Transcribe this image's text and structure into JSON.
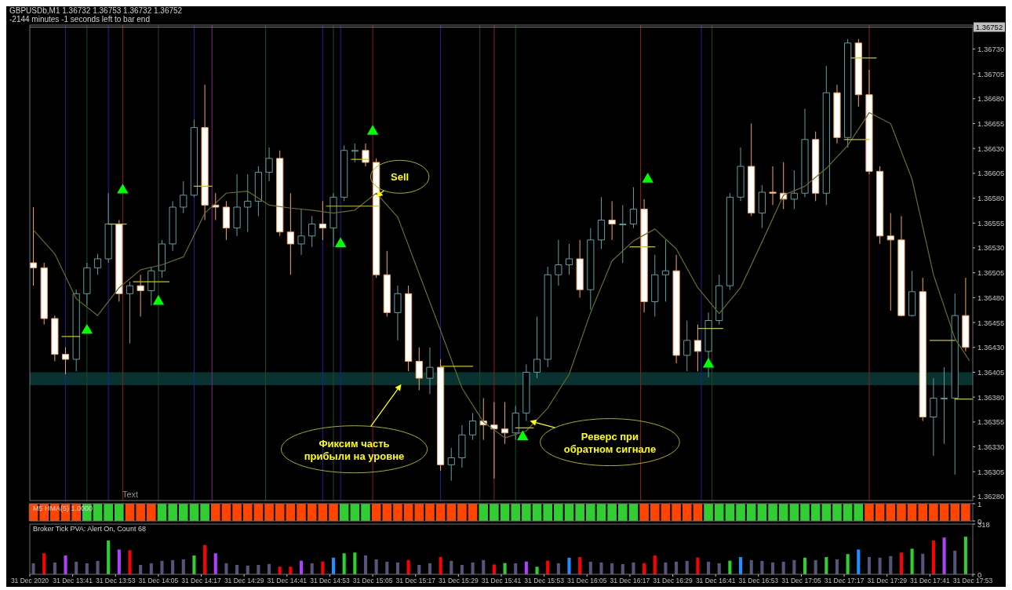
{
  "chart_data": [
    {
      "type": "candlestick",
      "title": "GBPUSDb,M1  1.36732 1.36753 1.36732 1.36752",
      "subtitle": "-2144 minutes -1 seconds left to bar end",
      "x": [
        "2020-12-31T13:30",
        "2020-12-31T13:33",
        "2020-12-31T13:36",
        "2020-12-31T13:39",
        "2020-12-31T13:42",
        "2020-12-31T13:45",
        "2020-12-31T13:48",
        "2020-12-31T13:51",
        "2020-12-31T13:54",
        "2020-12-31T13:57",
        "2020-12-31T14:00",
        "2020-12-31T14:03",
        "2020-12-31T14:06",
        "2020-12-31T14:09",
        "2020-12-31T14:12",
        "2020-12-31T14:15",
        "2020-12-31T14:18",
        "2020-12-31T14:21",
        "2020-12-31T14:24",
        "2020-12-31T14:27",
        "2020-12-31T14:30",
        "2020-12-31T14:33",
        "2020-12-31T14:36",
        "2020-12-31T14:39",
        "2020-12-31T14:42",
        "2020-12-31T14:45",
        "2020-12-31T14:48",
        "2020-12-31T14:51",
        "2020-12-31T14:54",
        "2020-12-31T14:57",
        "2020-12-31T15:00",
        "2020-12-31T15:03",
        "2020-12-31T15:06",
        "2020-12-31T15:09",
        "2020-12-31T15:12",
        "2020-12-31T15:15",
        "2020-12-31T15:18",
        "2020-12-31T15:21",
        "2020-12-31T15:24",
        "2020-12-31T15:27",
        "2020-12-31T15:30",
        "2020-12-31T15:33",
        "2020-12-31T15:36",
        "2020-12-31T15:39",
        "2020-12-31T15:42",
        "2020-12-31T15:45",
        "2020-12-31T15:48",
        "2020-12-31T15:51",
        "2020-12-31T15:54",
        "2020-12-31T15:57",
        "2020-12-31T16:00",
        "2020-12-31T16:03",
        "2020-12-31T16:06",
        "2020-12-31T16:09",
        "2020-12-31T16:12",
        "2020-12-31T16:15",
        "2020-12-31T16:18",
        "2020-12-31T16:21",
        "2020-12-31T16:24",
        "2020-12-31T16:27",
        "2020-12-31T16:30",
        "2020-12-31T16:33",
        "2020-12-31T16:36",
        "2020-12-31T16:39",
        "2020-12-31T16:42",
        "2020-12-31T16:45",
        "2020-12-31T16:48",
        "2020-12-31T16:51",
        "2020-12-31T16:54",
        "2020-12-31T16:57",
        "2020-12-31T17:00",
        "2020-12-31T17:03",
        "2020-12-31T17:06",
        "2020-12-31T17:09",
        "2020-12-31T17:12",
        "2020-12-31T17:15",
        "2020-12-31T17:18",
        "2020-12-31T17:21",
        "2020-12-31T17:24",
        "2020-12-31T17:27",
        "2020-12-31T17:30",
        "2020-12-31T17:33",
        "2020-12-31T17:36",
        "2020-12-31T17:39",
        "2020-12-31T17:42",
        "2020-12-31T17:45",
        "2020-12-31T17:48",
        "2020-12-31T17:51"
      ],
      "ohlc": [
        [
          1.36515,
          1.36571,
          1.36492,
          1.3651
        ],
        [
          1.3651,
          1.36515,
          1.36453,
          1.36459
        ],
        [
          1.36459,
          1.36462,
          1.36416,
          1.36423
        ],
        [
          1.36423,
          1.3643,
          1.36403,
          1.36418
        ],
        [
          1.36418,
          1.36488,
          1.36406,
          1.36484
        ],
        [
          1.36484,
          1.36515,
          1.36472,
          1.3651
        ],
        [
          1.3651,
          1.36524,
          1.36503,
          1.36519
        ],
        [
          1.36519,
          1.36585,
          1.36515,
          1.36554
        ],
        [
          1.36554,
          1.36558,
          1.36476,
          1.36484
        ],
        [
          1.36484,
          1.36496,
          1.36434,
          1.36492
        ],
        [
          1.36492,
          1.36503,
          1.36461,
          1.36487
        ],
        [
          1.36487,
          1.36511,
          1.36472,
          1.36507
        ],
        [
          1.36507,
          1.36538,
          1.365,
          1.36534
        ],
        [
          1.36534,
          1.36577,
          1.36527,
          1.36571
        ],
        [
          1.36571,
          1.36597,
          1.36565,
          1.36583
        ],
        [
          1.36583,
          1.36659,
          1.36581,
          1.36651
        ],
        [
          1.36651,
          1.36694,
          1.36558,
          1.36573
        ],
        [
          1.36573,
          1.36585,
          1.36558,
          1.36571
        ],
        [
          1.36571,
          1.36577,
          1.36538,
          1.3655
        ],
        [
          1.3655,
          1.36604,
          1.36542,
          1.36571
        ],
        [
          1.36571,
          1.36604,
          1.36546,
          1.36577
        ],
        [
          1.36577,
          1.36612,
          1.36562,
          1.36606
        ],
        [
          1.36606,
          1.36631,
          1.36597,
          1.3662
        ],
        [
          1.3662,
          1.36628,
          1.36542,
          1.36546
        ],
        [
          1.36546,
          1.36585,
          1.36503,
          1.36534
        ],
        [
          1.36534,
          1.36569,
          1.36523,
          1.36542
        ],
        [
          1.36542,
          1.36562,
          1.36531,
          1.36554
        ],
        [
          1.36554,
          1.36577,
          1.36538,
          1.3655
        ],
        [
          1.3655,
          1.36585,
          1.36531,
          1.36581
        ],
        [
          1.36581,
          1.36633,
          1.36577,
          1.36628
        ],
        [
          1.36628,
          1.36635,
          1.36616,
          1.36628
        ],
        [
          1.36628,
          1.36635,
          1.36612,
          1.36616
        ],
        [
          1.36616,
          1.3662,
          1.365,
          1.36503
        ],
        [
          1.36503,
          1.36527,
          1.36461,
          1.36465
        ],
        [
          1.36465,
          1.36492,
          1.36437,
          1.36484
        ],
        [
          1.36484,
          1.36492,
          1.36406,
          1.36416
        ],
        [
          1.36416,
          1.3643,
          1.36387,
          1.36399
        ],
        [
          1.36399,
          1.3643,
          1.36383,
          1.3641
        ],
        [
          1.3641,
          1.36418,
          1.36306,
          1.36312
        ],
        [
          1.36312,
          1.36329,
          1.36296,
          1.36319
        ],
        [
          1.36319,
          1.36352,
          1.36309,
          1.36342
        ],
        [
          1.36342,
          1.36364,
          1.36337,
          1.36356
        ],
        [
          1.36356,
          1.36379,
          1.36337,
          1.36352
        ],
        [
          1.36352,
          1.36375,
          1.36298,
          1.36348
        ],
        [
          1.36348,
          1.36375,
          1.36333,
          1.36344
        ],
        [
          1.36344,
          1.36371,
          1.36337,
          1.36364
        ],
        [
          1.36364,
          1.36413,
          1.36356,
          1.36405
        ],
        [
          1.36405,
          1.36461,
          1.36399,
          1.36418
        ],
        [
          1.36418,
          1.36511,
          1.3641,
          1.36503
        ],
        [
          1.36503,
          1.36538,
          1.36492,
          1.36513
        ],
        [
          1.36513,
          1.36534,
          1.36503,
          1.36519
        ],
        [
          1.36519,
          1.36538,
          1.3648,
          1.36488
        ],
        [
          1.36488,
          1.3655,
          1.36468,
          1.36538
        ],
        [
          1.36538,
          1.36581,
          1.36529,
          1.36558
        ],
        [
          1.36558,
          1.36577,
          1.36538,
          1.36554
        ],
        [
          1.36554,
          1.36573,
          1.36515,
          1.36554
        ],
        [
          1.36554,
          1.36591,
          1.3655,
          1.36569
        ],
        [
          1.36569,
          1.36579,
          1.36465,
          1.36476
        ],
        [
          1.36476,
          1.36523,
          1.36461,
          1.36503
        ],
        [
          1.36503,
          1.36538,
          1.36476,
          1.36507
        ],
        [
          1.36507,
          1.36523,
          1.36414,
          1.36422
        ],
        [
          1.36422,
          1.36457,
          1.36406,
          1.36437
        ],
        [
          1.36437,
          1.36453,
          1.36406,
          1.36426
        ],
        [
          1.36426,
          1.36465,
          1.364,
          1.36457
        ],
        [
          1.36457,
          1.36503,
          1.36453,
          1.36492
        ],
        [
          1.36492,
          1.36585,
          1.36488,
          1.36581
        ],
        [
          1.36581,
          1.36631,
          1.36577,
          1.36612
        ],
        [
          1.36612,
          1.36655,
          1.36562,
          1.36565
        ],
        [
          1.36565,
          1.36593,
          1.3655,
          1.36586
        ],
        [
          1.36586,
          1.36612,
          1.36573,
          1.36585
        ],
        [
          1.36585,
          1.36616,
          1.36569,
          1.36579
        ],
        [
          1.36579,
          1.36608,
          1.36569,
          1.36585
        ],
        [
          1.36585,
          1.3667,
          1.36581,
          1.36639
        ],
        [
          1.36639,
          1.36647,
          1.36577,
          1.36585
        ],
        [
          1.36585,
          1.36713,
          1.36573,
          1.36686
        ],
        [
          1.36686,
          1.36694,
          1.36635,
          1.36641
        ],
        [
          1.36641,
          1.3674,
          1.36631,
          1.36736
        ],
        [
          1.36736,
          1.3674,
          1.36672,
          1.36684
        ],
        [
          1.36684,
          1.36709,
          1.36604,
          1.36607
        ],
        [
          1.36607,
          1.36612,
          1.36534,
          1.36542
        ],
        [
          1.36542,
          1.36565,
          1.36467,
          1.36538
        ],
        [
          1.36538,
          1.36562,
          1.36461,
          1.36462
        ],
        [
          1.36462,
          1.36507,
          1.36461,
          1.36486
        ],
        [
          1.36486,
          1.365,
          1.36356,
          1.3636
        ],
        [
          1.3636,
          1.36399,
          1.36321,
          1.36379
        ],
        [
          1.36379,
          1.3641,
          1.36333,
          1.36379
        ],
        [
          1.36379,
          1.36484,
          1.36302,
          1.36462
        ],
        [
          1.36462,
          1.365,
          1.36426,
          1.3643
        ]
      ],
      "xlim": [
        "2020-12-31T13:29",
        "2020-12-31T17:53"
      ],
      "ylim": [
        1.36276,
        1.36754
      ],
      "yticks": [
        {
          "value": 1.3628,
          "label": "1.36280"
        },
        {
          "value": 1.36305,
          "label": "1.36305"
        },
        {
          "value": 1.3633,
          "label": "1.36330"
        },
        {
          "value": 1.36355,
          "label": "1.36355"
        },
        {
          "value": 1.3638,
          "label": "1.36380"
        },
        {
          "value": 1.36405,
          "label": "1.36405"
        },
        {
          "value": 1.3643,
          "label": "1.36430"
        },
        {
          "value": 1.36455,
          "label": "1.36455"
        },
        {
          "value": 1.3648,
          "label": "1.36480"
        },
        {
          "value": 1.36505,
          "label": "1.36505"
        },
        {
          "value": 1.3653,
          "label": "1.36530"
        },
        {
          "value": 1.36555,
          "label": "1.36555"
        },
        {
          "value": 1.3658,
          "label": "1.36580"
        },
        {
          "value": 1.36605,
          "label": "1.36605"
        },
        {
          "value": 1.3663,
          "label": "1.36630"
        },
        {
          "value": 1.36655,
          "label": "1.36655"
        },
        {
          "value": 1.3668,
          "label": "1.36680"
        },
        {
          "value": 1.36705,
          "label": "1.36705"
        },
        {
          "value": 1.3673,
          "label": "1.36730"
        }
      ],
      "tick_labels": "y",
      "series": [
        {
          "type": "line",
          "color": "#6b6b2a",
          "x": [
            "2020-12-31T13:30",
            "2020-12-31T13:36",
            "2020-12-31T13:42",
            "2020-12-31T13:48",
            "2020-12-31T13:54",
            "2020-12-31T14:00",
            "2020-12-31T14:06",
            "2020-12-31T14:12",
            "2020-12-31T14:18",
            "2020-12-31T14:24",
            "2020-12-31T14:30",
            "2020-12-31T14:36",
            "2020-12-31T14:42",
            "2020-12-31T14:48",
            "2020-12-31T14:54",
            "2020-12-31T15:00",
            "2020-12-31T15:06",
            "2020-12-31T15:12",
            "2020-12-31T15:18",
            "2020-12-31T15:24",
            "2020-12-31T15:30",
            "2020-12-31T15:36",
            "2020-12-31T15:42",
            "2020-12-31T15:48",
            "2020-12-31T15:54",
            "2020-12-31T16:00",
            "2020-12-31T16:06",
            "2020-12-31T16:12",
            "2020-12-31T16:18",
            "2020-12-31T16:24",
            "2020-12-31T16:30",
            "2020-12-31T16:36",
            "2020-12-31T16:42",
            "2020-12-31T16:48",
            "2020-12-31T16:54",
            "2020-12-31T17:00",
            "2020-12-31T17:06",
            "2020-12-31T17:12",
            "2020-12-31T17:18",
            "2020-12-31T17:24",
            "2020-12-31T17:30",
            "2020-12-31T17:36",
            "2020-12-31T17:42",
            "2020-12-31T17:48",
            "2020-12-31T17:52"
          ],
          "values": [
            1.36548,
            1.36524,
            1.36479,
            1.36462,
            1.3649,
            1.36508,
            1.36513,
            1.36521,
            1.36565,
            1.36585,
            1.36587,
            1.36573,
            1.3657,
            1.36568,
            1.36565,
            1.36568,
            1.36585,
            1.36561,
            1.36504,
            1.36447,
            1.36389,
            1.36355,
            1.36339,
            1.36346,
            1.36369,
            1.36403,
            1.36465,
            1.36517,
            1.36537,
            1.36549,
            1.36529,
            1.3649,
            1.36464,
            1.3649,
            1.36536,
            1.36583,
            1.36592,
            1.3661,
            1.36633,
            1.36666,
            1.36655,
            1.36599,
            1.36503,
            1.36439,
            1.36417
          ]
        },
        {
          "type": "line",
          "color": "#c8c800",
          "x": [
            "2020-12-31T13:38",
            "2020-12-31T13:43"
          ],
          "values": [
            1.36441,
            1.36441
          ]
        },
        {
          "type": "line",
          "color": "#c8c800",
          "x": [
            "2020-12-31T13:51",
            "2020-12-31T13:56"
          ],
          "values": [
            1.36554,
            1.36554
          ]
        },
        {
          "type": "line",
          "color": "#c8c800",
          "x": [
            "2020-12-31T13:58",
            "2020-12-31T14:08"
          ],
          "values": [
            1.36496,
            1.36496
          ]
        },
        {
          "type": "line",
          "color": "#c8c800",
          "x": [
            "2020-12-31T14:15",
            "2020-12-31T14:20"
          ],
          "values": [
            1.36592,
            1.36592
          ]
        },
        {
          "type": "line",
          "color": "#c8c800",
          "x": [
            "2020-12-31T14:52",
            "2020-12-31T15:07"
          ],
          "values": [
            1.36572,
            1.36572
          ]
        },
        {
          "type": "line",
          "color": "#c8c800",
          "x": [
            "2020-12-31T14:59",
            "2020-12-31T15:04"
          ],
          "values": [
            1.36619,
            1.36619
          ]
        },
        {
          "type": "line",
          "color": "#c8c800",
          "x": [
            "2020-12-31T15:24",
            "2020-12-31T15:33"
          ],
          "values": [
            1.36411,
            1.36411
          ]
        },
        {
          "type": "line",
          "color": "#c8c800",
          "x": [
            "2020-12-31T15:45",
            "2020-12-31T15:50"
          ],
          "values": [
            1.36349,
            1.36349
          ]
        },
        {
          "type": "line",
          "color": "#c8c800",
          "x": [
            "2020-12-31T16:17",
            "2020-12-31T16:24"
          ],
          "values": [
            1.36531,
            1.36531
          ]
        },
        {
          "type": "line",
          "color": "#c8c800",
          "x": [
            "2020-12-31T16:36",
            "2020-12-31T16:43"
          ],
          "values": [
            1.36449,
            1.36449
          ]
        },
        {
          "type": "line",
          "color": "#c8c800",
          "x": [
            "2020-12-31T17:19",
            "2020-12-31T17:26"
          ],
          "values": [
            1.36721,
            1.36721
          ]
        },
        {
          "type": "line",
          "color": "#c8c800",
          "x": [
            "2020-12-31T17:17",
            "2020-12-31T17:24"
          ],
          "values": [
            1.36639,
            1.36639
          ]
        },
        {
          "type": "line",
          "color": "#c8c800",
          "x": [
            "2020-12-31T17:41",
            "2020-12-31T17:48"
          ],
          "values": [
            1.36437,
            1.36437
          ]
        },
        {
          "type": "line",
          "color": "#c8c800",
          "x": [
            "2020-12-31T17:48",
            "2020-12-31T17:53"
          ],
          "values": [
            1.36378,
            1.36378
          ]
        },
        {
          "type": "scatter",
          "marker": "triangle",
          "color": "#00ff00",
          "x": [
            "2020-12-31T13:45",
            "2020-12-31T14:05",
            "2020-12-31T14:56",
            "2020-12-31T15:47",
            "2020-12-31T16:39"
          ],
          "values": [
            1.36447,
            1.36476,
            1.36534,
            1.3634,
            1.36413
          ]
        },
        {
          "type": "scatter",
          "marker": "triangle",
          "color": "#00ff00",
          "x": [
            "2020-12-31T13:55",
            "2020-12-31T15:05",
            "2020-12-31T16:22"
          ],
          "values": [
            1.36588,
            1.36647,
            1.36599
          ]
        }
      ],
      "bands": [
        {
          "axis": "y",
          "from": 1.36392,
          "to": 1.36405,
          "color": "#0a3230"
        }
      ],
      "ref_lines": [
        {
          "axis": "y",
          "value": 1.36752,
          "label": "1.36752",
          "color": "#808080"
        },
        {
          "axis": "x",
          "value": "2020-12-31T13:39",
          "color": "#2020a0"
        },
        {
          "axis": "x",
          "value": "2020-12-31T13:45",
          "color": "#1e4a1e"
        },
        {
          "axis": "x",
          "value": "2020-12-31T13:51",
          "color": "#2020a0"
        },
        {
          "axis": "x",
          "value": "2020-12-31T13:55",
          "color": "#8b2020"
        },
        {
          "axis": "x",
          "value": "2020-12-31T14:05",
          "color": "#1e4a1e"
        },
        {
          "axis": "x",
          "value": "2020-12-31T14:15",
          "color": "#2020a0"
        },
        {
          "axis": "x",
          "value": "2020-12-31T14:20",
          "color": "#8a208a"
        },
        {
          "axis": "x",
          "value": "2020-12-31T14:35",
          "color": "#1e4a1e"
        },
        {
          "axis": "x",
          "value": "2020-12-31T14:51",
          "color": "#2020a0"
        },
        {
          "axis": "x",
          "value": "2020-12-31T14:54",
          "color": "#1e4a1e"
        },
        {
          "axis": "x",
          "value": "2020-12-31T14:56",
          "color": "#2020a0"
        },
        {
          "axis": "x",
          "value": "2020-12-31T15:05",
          "color": "#8b2020"
        },
        {
          "axis": "x",
          "value": "2020-12-31T15:24",
          "color": "#2020a0"
        },
        {
          "axis": "x",
          "value": "2020-12-31T15:35",
          "color": "#1e4a1e"
        },
        {
          "axis": "x",
          "value": "2020-12-31T15:39",
          "color": "#8b2020"
        },
        {
          "axis": "x",
          "value": "2020-12-31T15:45",
          "color": "#1e4a1e"
        },
        {
          "axis": "x",
          "value": "2020-12-31T16:20",
          "color": "#8b2020"
        },
        {
          "axis": "x",
          "value": "2020-12-31T16:37",
          "color": "#2020a0"
        },
        {
          "axis": "x",
          "value": "2020-12-31T16:40",
          "color": "#1e4a1e"
        },
        {
          "axis": "x",
          "value": "2020-12-31T17:24",
          "color": "#8b2020"
        }
      ],
      "annotations": [
        {
          "text": "Sell",
          "x": "2020-12-31T15:06",
          "y": 1.36581
        },
        {
          "text": "Фиксим часть прибыли на уровне",
          "x": "2020-12-31T15:13",
          "y": 1.36393
        },
        {
          "text": "Реверс при обратном сигнале",
          "x": "2020-12-31T15:49",
          "y": 1.36356
        },
        "Text"
      ]
    },
    {
      "type": "bar",
      "title": "M5 HMA(5) 1.0000",
      "x": [
        "2020-12-31T13:30",
        "2020-12-31T13:33",
        "2020-12-31T13:36",
        "2020-12-31T13:39",
        "2020-12-31T13:42",
        "2020-12-31T13:45",
        "2020-12-31T13:48",
        "2020-12-31T13:51",
        "2020-12-31T13:54",
        "2020-12-31T13:57",
        "2020-12-31T14:00",
        "2020-12-31T14:03",
        "2020-12-31T14:06",
        "2020-12-31T14:09",
        "2020-12-31T14:12",
        "2020-12-31T14:15",
        "2020-12-31T14:18",
        "2020-12-31T14:21",
        "2020-12-31T14:24",
        "2020-12-31T14:27",
        "2020-12-31T14:30",
        "2020-12-31T14:33",
        "2020-12-31T14:36",
        "2020-12-31T14:39",
        "2020-12-31T14:42",
        "2020-12-31T14:45",
        "2020-12-31T14:48",
        "2020-12-31T14:51",
        "2020-12-31T14:54",
        "2020-12-31T14:57",
        "2020-12-31T15:00",
        "2020-12-31T15:03",
        "2020-12-31T15:06",
        "2020-12-31T15:09",
        "2020-12-31T15:12",
        "2020-12-31T15:15",
        "2020-12-31T15:18",
        "2020-12-31T15:21",
        "2020-12-31T15:24",
        "2020-12-31T15:27",
        "2020-12-31T15:30",
        "2020-12-31T15:33",
        "2020-12-31T15:36",
        "2020-12-31T15:39",
        "2020-12-31T15:42",
        "2020-12-31T15:45",
        "2020-12-31T15:48",
        "2020-12-31T15:51",
        "2020-12-31T15:54",
        "2020-12-31T15:57",
        "2020-12-31T16:00",
        "2020-12-31T16:03",
        "2020-12-31T16:06",
        "2020-12-31T16:09",
        "2020-12-31T16:12",
        "2020-12-31T16:15",
        "2020-12-31T16:18",
        "2020-12-31T16:21",
        "2020-12-31T16:24",
        "2020-12-31T16:27",
        "2020-12-31T16:30",
        "2020-12-31T16:33",
        "2020-12-31T16:36",
        "2020-12-31T16:39",
        "2020-12-31T16:42",
        "2020-12-31T16:45",
        "2020-12-31T16:48",
        "2020-12-31T16:51",
        "2020-12-31T16:54",
        "2020-12-31T16:57",
        "2020-12-31T17:00",
        "2020-12-31T17:03",
        "2020-12-31T17:06",
        "2020-12-31T17:09",
        "2020-12-31T17:12",
        "2020-12-31T17:15",
        "2020-12-31T17:18",
        "2020-12-31T17:21",
        "2020-12-31T17:24",
        "2020-12-31T17:27",
        "2020-12-31T17:30",
        "2020-12-31T17:33",
        "2020-12-31T17:36",
        "2020-12-31T17:39",
        "2020-12-31T17:42",
        "2020-12-31T17:45",
        "2020-12-31T17:48",
        "2020-12-31T17:51"
      ],
      "values": [
        1,
        1,
        1,
        1,
        1,
        1,
        1,
        1,
        1,
        1,
        1,
        1,
        1,
        1,
        1,
        1,
        1,
        1,
        1,
        1,
        1,
        1,
        1,
        1,
        1,
        1,
        1,
        1,
        1,
        1,
        1,
        1,
        1,
        1,
        1,
        1,
        1,
        1,
        1,
        1,
        1,
        1,
        1,
        1,
        1,
        1,
        1,
        1,
        1,
        1,
        1,
        1,
        1,
        1,
        1,
        1,
        1,
        1,
        1,
        1,
        1,
        1,
        1,
        1,
        1,
        1,
        1,
        1,
        1,
        1,
        1,
        1,
        1,
        1,
        1,
        1,
        1,
        1,
        1,
        1,
        1,
        1,
        1,
        1,
        1,
        1,
        1,
        1
      ],
      "colors": [
        "#ff4500",
        "#ff4500",
        "#ff4500",
        "#ff4500",
        "#ff4500",
        "#32cd32",
        "#32cd32",
        "#32cd32",
        "#32cd32",
        "#ff4500",
        "#ff4500",
        "#ff4500",
        "#32cd32",
        "#32cd32",
        "#32cd32",
        "#32cd32",
        "#32cd32",
        "#ff4500",
        "#ff4500",
        "#ff4500",
        "#ff4500",
        "#ff4500",
        "#ff4500",
        "#ff4500",
        "#ff4500",
        "#ff4500",
        "#ff4500",
        "#ff4500",
        "#ff4500",
        "#32cd32",
        "#32cd32",
        "#32cd32",
        "#ff4500",
        "#ff4500",
        "#ff4500",
        "#ff4500",
        "#ff4500",
        "#ff4500",
        "#ff4500",
        "#ff4500",
        "#ff4500",
        "#ff4500",
        "#32cd32",
        "#32cd32",
        "#32cd32",
        "#32cd32",
        "#32cd32",
        "#32cd32",
        "#32cd32",
        "#32cd32",
        "#32cd32",
        "#32cd32",
        "#32cd32",
        "#32cd32",
        "#32cd32",
        "#32cd32",
        "#32cd32",
        "#ff4500",
        "#ff4500",
        "#ff4500",
        "#ff4500",
        "#ff4500",
        "#ff4500",
        "#32cd32",
        "#32cd32",
        "#32cd32",
        "#32cd32",
        "#32cd32",
        "#32cd32",
        "#32cd32",
        "#32cd32",
        "#32cd32",
        "#32cd32",
        "#32cd32",
        "#32cd32",
        "#32cd32",
        "#32cd32",
        "#32cd32",
        "#ff4500",
        "#ff4500",
        "#ff4500",
        "#ff4500",
        "#ff4500",
        "#ff4500",
        "#ff4500",
        "#ff4500",
        "#ff4500",
        "#ff4500"
      ],
      "xlim": [
        "2020-12-31T13:29",
        "2020-12-31T17:53"
      ],
      "ylim": [
        0,
        1
      ],
      "yticks": [
        0,
        1
      ],
      "tick_labels": "y"
    },
    {
      "type": "bar",
      "title": "Broker Tick PVA:  Alert On,  Count  68",
      "x": [
        "2020-12-31T13:30",
        "2020-12-31T13:33",
        "2020-12-31T13:36",
        "2020-12-31T13:39",
        "2020-12-31T13:42",
        "2020-12-31T13:45",
        "2020-12-31T13:48",
        "2020-12-31T13:51",
        "2020-12-31T13:54",
        "2020-12-31T13:57",
        "2020-12-31T14:00",
        "2020-12-31T14:03",
        "2020-12-31T14:06",
        "2020-12-31T14:09",
        "2020-12-31T14:12",
        "2020-12-31T14:15",
        "2020-12-31T14:18",
        "2020-12-31T14:21",
        "2020-12-31T14:24",
        "2020-12-31T14:27",
        "2020-12-31T14:30",
        "2020-12-31T14:33",
        "2020-12-31T14:36",
        "2020-12-31T14:39",
        "2020-12-31T14:42",
        "2020-12-31T14:45",
        "2020-12-31T14:48",
        "2020-12-31T14:51",
        "2020-12-31T14:54",
        "2020-12-31T14:57",
        "2020-12-31T15:00",
        "2020-12-31T15:03",
        "2020-12-31T15:06",
        "2020-12-31T15:09",
        "2020-12-31T15:12",
        "2020-12-31T15:15",
        "2020-12-31T15:18",
        "2020-12-31T15:21",
        "2020-12-31T15:24",
        "2020-12-31T15:27",
        "2020-12-31T15:30",
        "2020-12-31T15:33",
        "2020-12-31T15:36",
        "2020-12-31T15:39",
        "2020-12-31T15:42",
        "2020-12-31T15:45",
        "2020-12-31T15:48",
        "2020-12-31T15:51",
        "2020-12-31T15:54",
        "2020-12-31T15:57",
        "2020-12-31T16:00",
        "2020-12-31T16:03",
        "2020-12-31T16:06",
        "2020-12-31T16:09",
        "2020-12-31T16:12",
        "2020-12-31T16:15",
        "2020-12-31T16:18",
        "2020-12-31T16:21",
        "2020-12-31T16:24",
        "2020-12-31T16:27",
        "2020-12-31T16:30",
        "2020-12-31T16:33",
        "2020-12-31T16:36",
        "2020-12-31T16:39",
        "2020-12-31T16:42",
        "2020-12-31T16:45",
        "2020-12-31T16:48",
        "2020-12-31T16:51",
        "2020-12-31T16:54",
        "2020-12-31T16:57",
        "2020-12-31T17:00",
        "2020-12-31T17:03",
        "2020-12-31T17:06",
        "2020-12-31T17:09",
        "2020-12-31T17:12",
        "2020-12-31T17:15",
        "2020-12-31T17:18",
        "2020-12-31T17:21",
        "2020-12-31T17:24",
        "2020-12-31T17:27",
        "2020-12-31T17:30",
        "2020-12-31T17:33",
        "2020-12-31T17:36",
        "2020-12-31T17:39",
        "2020-12-31T17:42",
        "2020-12-31T17:45",
        "2020-12-31T17:48",
        "2020-12-31T17:51"
      ],
      "values": [
        70,
        133,
        75,
        119,
        80,
        70,
        85,
        214,
        157,
        152,
        60,
        70,
        85,
        90,
        95,
        119,
        185,
        133,
        70,
        60,
        55,
        60,
        65,
        48,
        48,
        86,
        70,
        81,
        105,
        133,
        138,
        120,
        95,
        80,
        75,
        90,
        60,
        70,
        109,
        85,
        60,
        75,
        90,
        62,
        71,
        70,
        81,
        48,
        86,
        70,
        105,
        109,
        80,
        75,
        70,
        65,
        75,
        71,
        119,
        75,
        80,
        85,
        105,
        80,
        70,
        86,
        109,
        90,
        85,
        75,
        80,
        90,
        105,
        90,
        109,
        95,
        128,
        157,
        110,
        105,
        115,
        138,
        162,
        130,
        214,
        233,
        150,
        238
      ],
      "colors": [
        "#55557a",
        "#ff0000",
        "#55557a",
        "#b040ff",
        "#55557a",
        "#55557a",
        "#55557a",
        "#32cd32",
        "#b040ff",
        "#ff0000",
        "#55557a",
        "#55557a",
        "#55557a",
        "#55557a",
        "#55557a",
        "#32cd32",
        "#ff0000",
        "#b040ff",
        "#55557a",
        "#55557a",
        "#55557a",
        "#55557a",
        "#55557a",
        "#ff0000",
        "#ff0000",
        "#b040ff",
        "#55557a",
        "#ff0000",
        "#1e90ff",
        "#32cd32",
        "#32cd32",
        "#55557a",
        "#55557a",
        "#55557a",
        "#55557a",
        "#ff0000",
        "#55557a",
        "#55557a",
        "#ff0000",
        "#55557a",
        "#55557a",
        "#55557a",
        "#55557a",
        "#ff0000",
        "#32cd32",
        "#55557a",
        "#b040ff",
        "#32cd32",
        "#ff0000",
        "#55557a",
        "#1e90ff",
        "#ff0000",
        "#55557a",
        "#55557a",
        "#55557a",
        "#55557a",
        "#55557a",
        "#ff0000",
        "#ff0000",
        "#55557a",
        "#55557a",
        "#55557a",
        "#ff0000",
        "#55557a",
        "#55557a",
        "#32cd32",
        "#1e90ff",
        "#55557a",
        "#55557a",
        "#55557a",
        "#55557a",
        "#55557a",
        "#32cd32",
        "#55557a",
        "#32cd32",
        "#55557a",
        "#32cd32",
        "#1e90ff",
        "#55557a",
        "#55557a",
        "#55557a",
        "#ff0000",
        "#32cd32",
        "#55557a",
        "#ff0000",
        "#b040ff",
        "#55557a",
        "#32cd32"
      ],
      "xlim": [
        "2020-12-31T13:29",
        "2020-12-31T17:53"
      ],
      "xticks": [
        {
          "value": "2020-12-31T13:29",
          "label": "31 Dec 2020"
        },
        {
          "value": "2020-12-31T13:41",
          "label": "31 Dec 13:41"
        },
        {
          "value": "2020-12-31T13:53",
          "label": "31 Dec 13:53"
        },
        {
          "value": "2020-12-31T14:05",
          "label": "31 Dec 14:05"
        },
        {
          "value": "2020-12-31T14:17",
          "label": "31 Dec 14:17"
        },
        {
          "value": "2020-12-31T14:29",
          "label": "31 Dec 14:29"
        },
        {
          "value": "2020-12-31T14:41",
          "label": "31 Dec 14:41"
        },
        {
          "value": "2020-12-31T14:53",
          "label": "31 Dec 14:53"
        },
        {
          "value": "2020-12-31T15:05",
          "label": "31 Dec 15:05"
        },
        {
          "value": "2020-12-31T15:17",
          "label": "31 Dec 15:17"
        },
        {
          "value": "2020-12-31T15:29",
          "label": "31 Dec 15:29"
        },
        {
          "value": "2020-12-31T15:41",
          "label": "31 Dec 15:41"
        },
        {
          "value": "2020-12-31T15:53",
          "label": "31 Dec 15:53"
        },
        {
          "value": "2020-12-31T16:05",
          "label": "31 Dec 16:05"
        },
        {
          "value": "2020-12-31T16:17",
          "label": "31 Dec 16:17"
        },
        {
          "value": "2020-12-31T16:29",
          "label": "31 Dec 16:29"
        },
        {
          "value": "2020-12-31T16:41",
          "label": "31 Dec 16:41"
        },
        {
          "value": "2020-12-31T16:53",
          "label": "31 Dec 16:53"
        },
        {
          "value": "2020-12-31T17:05",
          "label": "31 Dec 17:05"
        },
        {
          "value": "2020-12-31T17:17",
          "label": "31 Dec 17:17"
        },
        {
          "value": "2020-12-31T17:29",
          "label": "31 Dec 17:29"
        },
        {
          "value": "2020-12-31T17:41",
          "label": "31 Dec 17:41"
        },
        {
          "value": "2020-12-31T17:53",
          "label": "31 Dec 17:53"
        }
      ],
      "ylim": [
        0,
        318
      ],
      "yticks": [
        0,
        318
      ]
    }
  ]
}
